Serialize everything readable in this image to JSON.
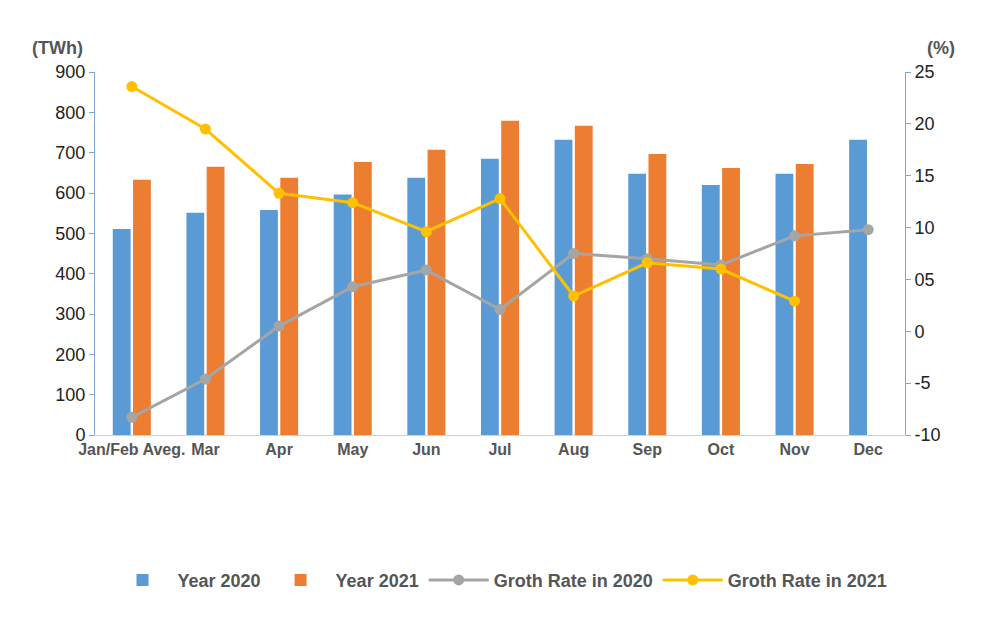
{
  "chart_data": {
    "type": "bar",
    "y_label": "(TWh)",
    "y2_label": "(%)",
    "categories": [
      "Jan/Feb Aveg.",
      "Mar",
      "Apr",
      "May",
      "Jun",
      "Jul",
      "Aug",
      "Sep",
      "Oct",
      "Nov",
      "Dec"
    ],
    "series": [
      {
        "name": "Year 2020",
        "type": "bar",
        "color": "#5b9bd5",
        "values": [
          511,
          551,
          558,
          596,
          638,
          685,
          732,
          648,
          620,
          648,
          732
        ]
      },
      {
        "name": "Year 2021",
        "type": "bar",
        "color": "#ed7d31",
        "values": [
          633,
          665,
          638,
          677,
          707,
          779,
          767,
          697,
          662,
          672,
          null
        ]
      },
      {
        "name": "Groth Rate in 2020",
        "type": "line",
        "axis": "y2",
        "color": "#a5a5a5",
        "marker": "circle",
        "line_style": "solid",
        "values": [
          -8.3,
          -4.6,
          0.5,
          4.3,
          5.9,
          2.1,
          7.5,
          7.0,
          6.4,
          9.2,
          9.8
        ]
      },
      {
        "name": "Groth Rate in 2021",
        "type": "line",
        "axis": "y2",
        "color": "#ffc000",
        "marker": "circle",
        "line_style": "solid",
        "values": [
          23.6,
          19.5,
          13.3,
          12.4,
          9.6,
          12.8,
          3.4,
          6.6,
          6.0,
          2.9,
          null
        ]
      }
    ],
    "ylim": [
      0,
      900
    ],
    "yticks": [
      0,
      100,
      200,
      300,
      400,
      500,
      600,
      700,
      800,
      900
    ],
    "y2lim": [
      -10,
      25
    ],
    "y2ticks": [
      -10,
      -5,
      0,
      {
        "value": 5,
        "label": "05"
      },
      10,
      15,
      20,
      25
    ],
    "grid": false,
    "legend": "bottom"
  }
}
